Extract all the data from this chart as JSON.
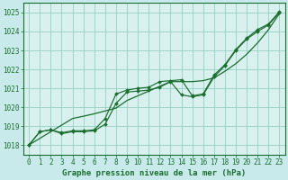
{
  "title": "Graphe pression niveau de la mer (hPa)",
  "bg_color": "#c8eaea",
  "plot_bg_color": "#d8f0ee",
  "grid_color": "#88ccbb",
  "line_color": "#1a6e2e",
  "marker_color": "#1a6e2e",
  "xlim": [
    -0.5,
    23.5
  ],
  "ylim": [
    1017.5,
    1025.5
  ],
  "xticks": [
    0,
    1,
    2,
    3,
    4,
    5,
    6,
    7,
    8,
    9,
    10,
    11,
    12,
    13,
    14,
    15,
    16,
    17,
    18,
    19,
    20,
    21,
    22,
    23
  ],
  "yticks": [
    1018,
    1019,
    1020,
    1021,
    1022,
    1023,
    1024,
    1025
  ],
  "series_smooth": [
    1018.0,
    1018.35,
    1018.7,
    1019.05,
    1019.4,
    1019.52,
    1019.65,
    1019.8,
    1019.95,
    1020.35,
    1020.6,
    1020.85,
    1021.1,
    1021.35,
    1021.35,
    1021.35,
    1021.4,
    1021.55,
    1021.9,
    1022.3,
    1022.8,
    1023.4,
    1024.1,
    1024.95
  ],
  "series_main": [
    1018.0,
    1018.7,
    1018.8,
    1018.6,
    1018.7,
    1018.7,
    1018.75,
    1019.1,
    1020.2,
    1020.8,
    1020.85,
    1020.9,
    1021.05,
    1021.35,
    1020.65,
    1020.55,
    1020.65,
    1021.6,
    1022.2,
    1023.0,
    1023.6,
    1024.0,
    1024.35,
    1025.0
  ],
  "series_alt": [
    1018.0,
    1018.7,
    1018.8,
    1018.65,
    1018.75,
    1018.75,
    1018.8,
    1019.4,
    1020.7,
    1020.9,
    1021.0,
    1021.05,
    1021.35,
    1021.4,
    1021.45,
    1020.6,
    1020.7,
    1021.7,
    1022.25,
    1023.05,
    1023.65,
    1024.1,
    1024.4,
    1025.05
  ],
  "xlabel_fontsize": 6.5,
  "tick_fontsize": 5.5,
  "figwidth": 3.2,
  "figheight": 2.0,
  "dpi": 100
}
